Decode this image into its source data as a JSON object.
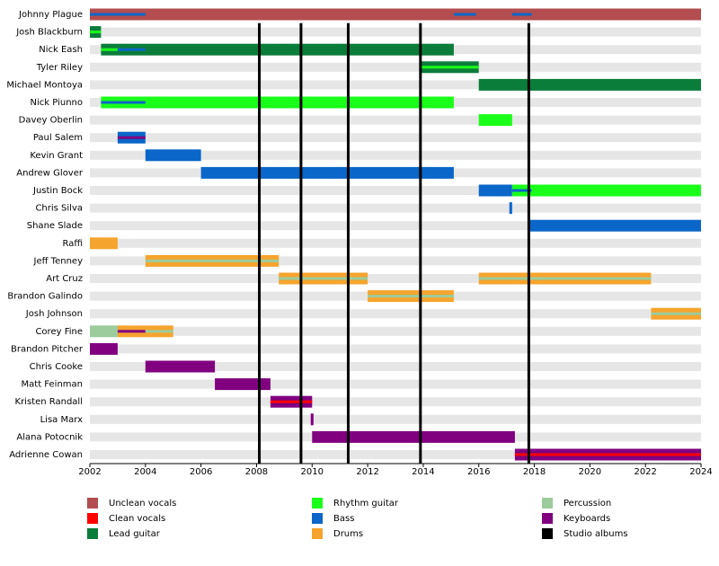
{
  "chart_data": {
    "type": "timeline",
    "members": [
      "Johnny Plague",
      "Josh Blackburn",
      "Nick Eash",
      "Tyler Riley",
      "Michael Montoya",
      "Nick Piunno",
      "Davey Oberlin",
      "Paul Salem",
      "Kevin Grant",
      "Andrew Glover",
      "Justin Bock",
      "Chris Silva",
      "Shane Slade",
      "Raffi",
      "Jeff Tenney",
      "Art Cruz",
      "Brandon Galindo",
      "Josh Johnson",
      "Corey Fine",
      "Brandon Pitcher",
      "Chris Cooke",
      "Matt Feinman",
      "Kristen Randall",
      "Lisa Marx",
      "Alana Potocnik",
      "Adrienne Cowan"
    ],
    "series": [
      {
        "name": "Unclean vocals",
        "color": "#b34d4f"
      },
      {
        "name": "Clean vocals",
        "color": "#ff0000"
      },
      {
        "name": "Lead guitar",
        "color": "#0b7d3a"
      },
      {
        "name": "Rhythm guitar",
        "color": "#1aff1a"
      },
      {
        "name": "Bass",
        "color": "#0a66c8"
      },
      {
        "name": "Drums",
        "color": "#f5a42e"
      },
      {
        "name": "Percussion",
        "color": "#9ccc9c"
      },
      {
        "name": "Keyboards",
        "color": "#800080"
      },
      {
        "name": "Studio albums",
        "color": "#000000",
        "values": [
          2008.1,
          2009.6,
          2011.3,
          2013.9,
          2017.8
        ]
      }
    ],
    "bars": [
      {
        "member": 0,
        "series": 0,
        "start": 2002,
        "end": 2024
      },
      {
        "member": 0,
        "series": 4,
        "start": 2002,
        "end": 2004,
        "thin": true
      },
      {
        "member": 0,
        "series": 4,
        "start": 2015.1,
        "end": 2015.9,
        "thin": true
      },
      {
        "member": 0,
        "series": 4,
        "start": 2017.2,
        "end": 2017.9,
        "thin": true
      },
      {
        "member": 1,
        "series": 2,
        "start": 2002,
        "end": 2002.4
      },
      {
        "member": 1,
        "series": 3,
        "start": 2002,
        "end": 2002.4,
        "thin": true
      },
      {
        "member": 2,
        "series": 2,
        "start": 2002.4,
        "end": 2015.1
      },
      {
        "member": 2,
        "series": 3,
        "start": 2002.4,
        "end": 2003,
        "thin": true
      },
      {
        "member": 2,
        "series": 4,
        "start": 2003,
        "end": 2004,
        "thin": true
      },
      {
        "member": 3,
        "series": 2,
        "start": 2013.9,
        "end": 2016
      },
      {
        "member": 3,
        "series": 3,
        "start": 2013.9,
        "end": 2016,
        "thin": true
      },
      {
        "member": 4,
        "series": 2,
        "start": 2016,
        "end": 2024
      },
      {
        "member": 5,
        "series": 3,
        "start": 2002.4,
        "end": 2015.1
      },
      {
        "member": 5,
        "series": 4,
        "start": 2002.4,
        "end": 2004,
        "thin": true
      },
      {
        "member": 6,
        "series": 3,
        "start": 2016,
        "end": 2017.2
      },
      {
        "member": 7,
        "series": 4,
        "start": 2003,
        "end": 2004
      },
      {
        "member": 7,
        "series": 7,
        "start": 2003,
        "end": 2004,
        "thin": true
      },
      {
        "member": 8,
        "series": 4,
        "start": 2004,
        "end": 2006
      },
      {
        "member": 9,
        "series": 4,
        "start": 2006,
        "end": 2015.1
      },
      {
        "member": 10,
        "series": 4,
        "start": 2016,
        "end": 2017.2
      },
      {
        "member": 10,
        "series": 3,
        "start": 2017.2,
        "end": 2024
      },
      {
        "member": 10,
        "series": 4,
        "start": 2017.2,
        "end": 2017.9,
        "thin": true
      },
      {
        "member": 11,
        "series": 4,
        "start": 2017.1,
        "end": 2017.2
      },
      {
        "member": 12,
        "series": 4,
        "start": 2017.8,
        "end": 2024
      },
      {
        "member": 13,
        "series": 5,
        "start": 2002,
        "end": 2003
      },
      {
        "member": 14,
        "series": 5,
        "start": 2004,
        "end": 2008.8
      },
      {
        "member": 14,
        "series": 6,
        "start": 2004,
        "end": 2008.8,
        "thin": true
      },
      {
        "member": 15,
        "series": 5,
        "start": 2008.8,
        "end": 2012
      },
      {
        "member": 15,
        "series": 6,
        "start": 2008.8,
        "end": 2012,
        "thin": true
      },
      {
        "member": 15,
        "series": 5,
        "start": 2016,
        "end": 2022.2
      },
      {
        "member": 15,
        "series": 6,
        "start": 2016,
        "end": 2022.2,
        "thin": true
      },
      {
        "member": 16,
        "series": 5,
        "start": 2012,
        "end": 2015.1
      },
      {
        "member": 16,
        "series": 6,
        "start": 2012,
        "end": 2015.1,
        "thin": true
      },
      {
        "member": 17,
        "series": 5,
        "start": 2022.2,
        "end": 2024
      },
      {
        "member": 17,
        "series": 6,
        "start": 2022.2,
        "end": 2024,
        "thin": true
      },
      {
        "member": 18,
        "series": 6,
        "start": 2002,
        "end": 2003
      },
      {
        "member": 18,
        "series": 5,
        "start": 2003,
        "end": 2005
      },
      {
        "member": 18,
        "series": 7,
        "start": 2003,
        "end": 2004,
        "thin": true
      },
      {
        "member": 18,
        "series": 6,
        "start": 2004,
        "end": 2005,
        "thin": true
      },
      {
        "member": 19,
        "series": 7,
        "start": 2002,
        "end": 2003
      },
      {
        "member": 20,
        "series": 7,
        "start": 2004,
        "end": 2006.5
      },
      {
        "member": 21,
        "series": 7,
        "start": 2006.5,
        "end": 2008.5
      },
      {
        "member": 22,
        "series": 7,
        "start": 2008.5,
        "end": 2010
      },
      {
        "member": 22,
        "series": 1,
        "start": 2008.5,
        "end": 2010,
        "thin": true
      },
      {
        "member": 23,
        "series": 7,
        "start": 2009.95,
        "end": 2010.05
      },
      {
        "member": 24,
        "series": 7,
        "start": 2010,
        "end": 2017.3
      },
      {
        "member": 25,
        "series": 7,
        "start": 2017.3,
        "end": 2024
      },
      {
        "member": 25,
        "series": 1,
        "start": 2017.3,
        "end": 2024,
        "thin": true
      }
    ],
    "xlim": [
      2002,
      2024
    ],
    "xticks": [
      2002,
      2004,
      2006,
      2008,
      2010,
      2012,
      2014,
      2016,
      2018,
      2020,
      2022,
      2024
    ]
  }
}
